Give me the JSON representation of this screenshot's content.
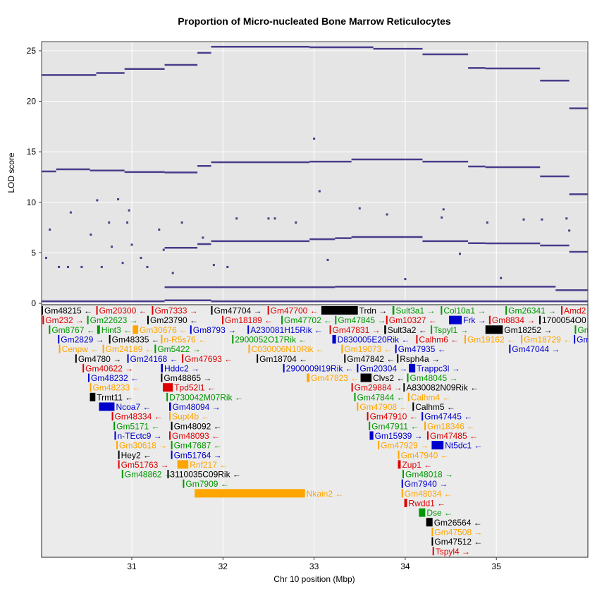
{
  "chart_data": {
    "type": "line",
    "title": "Proportion of Micro-nucleated Bone Marrow Reticulocytes",
    "xlabel": "Chr 10 position (Mbp)",
    "ylabel": "LOD score",
    "xlim": [
      30.01,
      36.0
    ],
    "ylim": [
      0,
      25.9
    ],
    "xticks": [
      31,
      32,
      33,
      34,
      35
    ],
    "yticks": [
      0,
      5,
      10,
      15,
      20,
      25
    ],
    "grid": true,
    "line_color": "#483D8B",
    "series": [
      {
        "steps": [
          [
            30.01,
            30.61,
            22.6
          ],
          [
            30.61,
            30.92,
            22.8
          ],
          [
            30.92,
            31.36,
            23.2
          ],
          [
            31.36,
            31.72,
            23.6
          ],
          [
            31.72,
            31.87,
            24.8
          ],
          [
            31.87,
            32.95,
            25.4
          ],
          [
            32.95,
            33.65,
            25.35
          ],
          [
            33.65,
            34.19,
            25.2
          ],
          [
            34.19,
            34.69,
            24.65
          ],
          [
            34.69,
            34.88,
            23.3
          ],
          [
            34.88,
            35.48,
            23.25
          ],
          [
            35.48,
            35.8,
            22.05
          ],
          [
            35.8,
            36.0,
            19.3
          ]
        ]
      },
      {
        "steps": [
          [
            30.01,
            30.17,
            13.06
          ],
          [
            30.17,
            30.54,
            13.27
          ],
          [
            30.54,
            30.92,
            13.15
          ],
          [
            30.92,
            31.36,
            13.0
          ],
          [
            31.36,
            31.72,
            12.95
          ],
          [
            31.72,
            31.87,
            13.6
          ],
          [
            31.87,
            32.95,
            13.97
          ],
          [
            32.95,
            33.41,
            14.03
          ],
          [
            33.41,
            34.19,
            14.25
          ],
          [
            34.19,
            34.69,
            14.03
          ],
          [
            34.69,
            34.88,
            13.55
          ],
          [
            34.88,
            35.48,
            13.48
          ],
          [
            35.48,
            35.8,
            12.57
          ],
          [
            35.8,
            36.0,
            10.8
          ]
        ]
      },
      {
        "steps": [
          [
            31.36,
            31.72,
            5.5
          ],
          [
            31.72,
            31.87,
            5.87
          ],
          [
            31.87,
            32.95,
            6.15
          ],
          [
            32.95,
            33.23,
            6.35
          ],
          [
            33.23,
            33.41,
            6.45
          ],
          [
            33.41,
            34.19,
            6.56
          ],
          [
            34.19,
            34.69,
            6.15
          ],
          [
            34.69,
            34.88,
            5.95
          ],
          [
            34.88,
            35.48,
            5.94
          ],
          [
            35.48,
            35.8,
            5.73
          ],
          [
            35.8,
            36.0,
            5.1
          ]
        ]
      },
      {
        "steps": [
          [
            30.01,
            31.36,
            0.2
          ],
          [
            31.36,
            31.87,
            0.3
          ],
          [
            31.87,
            36.0,
            0.2
          ]
        ]
      },
      {
        "steps": [
          [
            31.36,
            33.23,
            1.6
          ],
          [
            33.23,
            35.65,
            1.65
          ],
          [
            35.65,
            36.0,
            1.3
          ]
        ]
      }
    ],
    "points": [
      [
        30.06,
        4.5
      ],
      [
        30.1,
        7.3
      ],
      [
        30.2,
        3.6
      ],
      [
        30.3,
        3.6
      ],
      [
        30.33,
        9.0
      ],
      [
        30.45,
        3.6
      ],
      [
        30.55,
        6.8
      ],
      [
        30.62,
        10.2
      ],
      [
        30.67,
        3.6
      ],
      [
        30.75,
        8.0
      ],
      [
        30.78,
        5.6
      ],
      [
        30.85,
        10.3
      ],
      [
        30.9,
        4.0
      ],
      [
        30.95,
        8.0
      ],
      [
        30.97,
        9.2
      ],
      [
        31.0,
        5.8
      ],
      [
        31.1,
        4.5
      ],
      [
        31.17,
        3.6
      ],
      [
        31.3,
        7.3
      ],
      [
        31.35,
        5.3
      ],
      [
        31.45,
        3.0
      ],
      [
        31.55,
        8.0
      ],
      [
        31.78,
        6.5
      ],
      [
        31.9,
        3.8
      ],
      [
        32.05,
        3.6
      ],
      [
        32.15,
        8.4
      ],
      [
        32.5,
        8.4
      ],
      [
        32.57,
        8.4
      ],
      [
        32.8,
        8.0
      ],
      [
        33.0,
        16.3
      ],
      [
        33.06,
        11.1
      ],
      [
        33.15,
        4.3
      ],
      [
        33.5,
        9.4
      ],
      [
        33.8,
        8.8
      ],
      [
        34.0,
        2.4
      ],
      [
        34.4,
        8.5
      ],
      [
        34.42,
        9.3
      ],
      [
        34.6,
        4.9
      ],
      [
        34.9,
        8.0
      ],
      [
        35.05,
        2.5
      ],
      [
        35.3,
        8.3
      ],
      [
        35.5,
        8.3
      ],
      [
        35.77,
        8.4
      ],
      [
        35.8,
        7.2
      ]
    ],
    "gene_colors": {
      "k": "#000000",
      "r": "#dd0000",
      "g": "#009900",
      "b": "#0000cc",
      "o": "#ffa500"
    },
    "genes": [
      [
        "Gm48215",
        30.01,
        30.01,
        "-",
        "k",
        0
      ],
      [
        "Gm20300",
        30.61,
        30.61,
        "-",
        "r",
        0
      ],
      [
        "Gm7333",
        31.22,
        31.22,
        "+",
        "r",
        0
      ],
      [
        "Gm47704",
        31.87,
        31.87,
        "+",
        "k",
        0
      ],
      [
        "Gm47700",
        32.49,
        32.49,
        "-",
        "r",
        0
      ],
      [
        "Trdn",
        33.08,
        33.48,
        "+",
        "k",
        0
      ],
      [
        "Sult3a1",
        33.86,
        33.88,
        "+",
        "g",
        0
      ],
      [
        "Col10a1",
        34.39,
        34.39,
        "+",
        "g",
        0
      ],
      [
        "Gm26341",
        35.1,
        35.1,
        "+",
        "g",
        0
      ],
      [
        "Amd2",
        35.71,
        35.71,
        "-",
        "r",
        0
      ],
      [
        "Gm232",
        30.02,
        30.02,
        "+",
        "r",
        1
      ],
      [
        "Gm22623",
        30.51,
        30.51,
        "+",
        "g",
        1
      ],
      [
        "Gm23790",
        31.17,
        31.17,
        "-",
        "k",
        1
      ],
      [
        "Gm18189",
        31.99,
        31.99,
        "-",
        "r",
        1
      ],
      [
        "Gm47702",
        32.64,
        32.64,
        "-",
        "g",
        1
      ],
      [
        "Gm47845",
        33.23,
        33.23,
        "+",
        "g",
        1
      ],
      [
        "Gm10327",
        33.79,
        33.79,
        "-",
        "r",
        1
      ],
      [
        "Frk",
        34.48,
        34.62,
        "+",
        "b",
        1
      ],
      [
        "Gm8834",
        34.92,
        34.92,
        "+",
        "r",
        1
      ],
      [
        "1700054O0",
        35.47,
        35.47,
        "",
        "k",
        1
      ],
      [
        "Gm8767",
        30.09,
        30.09,
        "-",
        "g",
        2
      ],
      [
        "Hint3",
        30.62,
        30.65,
        "-",
        "g",
        2
      ],
      [
        "Gm30676",
        31.01,
        31.07,
        "-",
        "o",
        2
      ],
      [
        "Gm8793",
        31.64,
        31.64,
        "+",
        "b",
        2
      ],
      [
        "A230081H15Rik",
        32.27,
        32.27,
        "-",
        "b",
        2
      ],
      [
        "Gm47831",
        33.17,
        33.17,
        "+",
        "r",
        2
      ],
      [
        "Sult3a2",
        33.77,
        33.79,
        "-",
        "k",
        2
      ],
      [
        "Tspyl1",
        34.28,
        34.28,
        "+",
        "g",
        2
      ],
      [
        "Gm18252",
        34.88,
        35.07,
        "+",
        "k",
        2
      ],
      [
        "Gm",
        35.86,
        35.87,
        "",
        "g",
        2
      ],
      [
        "Gm2829",
        30.19,
        30.19,
        "+",
        "b",
        3
      ],
      [
        "Gm48335",
        30.75,
        30.75,
        "-",
        "k",
        3
      ],
      [
        "n-R5s76",
        31.32,
        31.32,
        "-",
        "o",
        3
      ],
      [
        "2900052O17Rik",
        32.1,
        32.1,
        "-",
        "g",
        3
      ],
      [
        "D830005E20Rik",
        33.2,
        33.24,
        "-",
        "b",
        3
      ],
      [
        "Calhm6",
        34.12,
        34.12,
        "-",
        "r",
        3
      ],
      [
        "Gm19162",
        34.65,
        34.65,
        "-",
        "o",
        3
      ],
      [
        "Gm18729",
        35.27,
        35.27,
        "-",
        "o",
        3
      ],
      [
        "Gm",
        35.85,
        35.86,
        "",
        "b",
        3
      ],
      [
        "Cenpw",
        30.2,
        30.2,
        "-",
        "o",
        4
      ],
      [
        "Gm24189",
        30.68,
        30.68,
        "-",
        "o",
        4
      ],
      [
        "Gm5422",
        31.25,
        31.25,
        "+",
        "g",
        4
      ],
      [
        "C030006N10Rik",
        32.28,
        32.28,
        "-",
        "o",
        4
      ],
      [
        "Gm19073",
        33.3,
        33.3,
        "-",
        "o",
        4
      ],
      [
        "Gm47935",
        33.89,
        33.89,
        "-",
        "b",
        4
      ],
      [
        "Gm47044",
        35.14,
        35.14,
        "+",
        "b",
        4
      ],
      [
        "Gm4780",
        30.38,
        30.38,
        "+",
        "k",
        5
      ],
      [
        "Gm24168",
        30.95,
        30.95,
        "-",
        "b",
        5
      ],
      [
        "Gm47693",
        31.55,
        31.55,
        "-",
        "r",
        5
      ],
      [
        "Gm18704",
        32.37,
        32.37,
        "-",
        "k",
        5
      ],
      [
        "Gm47842",
        33.33,
        33.33,
        "-",
        "k",
        5
      ],
      [
        "Rsph4a",
        33.91,
        33.92,
        "+",
        "k",
        5
      ],
      [
        "Gm40622",
        30.46,
        30.46,
        "+",
        "r",
        6
      ],
      [
        "Hddc2",
        31.32,
        31.34,
        "+",
        "b",
        6
      ],
      [
        "2900009I19Rik",
        32.66,
        32.66,
        "-",
        "b",
        6
      ],
      [
        "Gm20304",
        33.47,
        33.47,
        "+",
        "b",
        6
      ],
      [
        "Trappc3l",
        34.04,
        34.11,
        "+",
        "b",
        6
      ],
      [
        "Gm48232",
        30.52,
        30.52,
        "-",
        "b",
        7
      ],
      [
        "Gm48865",
        31.32,
        31.32,
        "+",
        "k",
        7
      ],
      [
        "Gm47823",
        32.92,
        32.95,
        "-",
        "o",
        7
      ],
      [
        "Clvs2",
        33.51,
        33.63,
        "-",
        "k",
        7
      ],
      [
        "Gm48045",
        34.02,
        34.02,
        "+",
        "g",
        7
      ],
      [
        "Gm48233",
        30.54,
        30.54,
        "-",
        "o",
        8
      ],
      [
        "Tpd52l1",
        31.34,
        31.45,
        "-",
        "r",
        8
      ],
      [
        "Gm29884",
        33.41,
        33.41,
        "+",
        "r",
        8
      ],
      [
        "A830082N09Rik",
        33.98,
        33.99,
        "-",
        "k",
        8
      ],
      [
        "Trmt11",
        30.54,
        30.6,
        "-",
        "k",
        9
      ],
      [
        "D730042M07Rik",
        31.38,
        31.38,
        "-",
        "g",
        9
      ],
      [
        "Gm47844",
        33.44,
        33.44,
        "-",
        "g",
        9
      ],
      [
        "Calhm4",
        34.03,
        34.03,
        "-",
        "o",
        9
      ],
      [
        "Ncoa7",
        30.64,
        30.81,
        "-",
        "b",
        10
      ],
      [
        "Gm48094",
        31.41,
        31.43,
        "+",
        "b",
        10
      ],
      [
        "Gm47908",
        33.47,
        33.47,
        "-",
        "o",
        10
      ],
      [
        "Calhm5",
        34.08,
        34.09,
        "-",
        "k",
        10
      ],
      [
        "Gm48334",
        30.78,
        30.78,
        "-",
        "r",
        11
      ],
      [
        "Supt4b",
        31.41,
        31.41,
        "-",
        "o",
        11
      ],
      [
        "Gm47910",
        33.58,
        33.58,
        "-",
        "r",
        11
      ],
      [
        "Gm47445",
        34.18,
        34.18,
        "-",
        "b",
        11
      ],
      [
        "Gm5171",
        30.8,
        30.8,
        "-",
        "g",
        12
      ],
      [
        "Gm48092",
        31.43,
        31.43,
        "-",
        "k",
        12
      ],
      [
        "Gm47911",
        33.6,
        33.6,
        "-",
        "g",
        12
      ],
      [
        "Gm18346",
        34.21,
        34.21,
        "-",
        "o",
        12
      ],
      [
        "n-TEctc9",
        30.81,
        30.81,
        "+",
        "b",
        13
      ],
      [
        "Gm48093",
        31.41,
        31.41,
        "-",
        "r",
        13
      ],
      [
        "Gm15939",
        33.61,
        33.65,
        "+",
        "b",
        13
      ],
      [
        "Gm47485",
        34.24,
        34.24,
        "-",
        "r",
        13
      ],
      [
        "Gm30618",
        30.83,
        30.83,
        "+",
        "o",
        14
      ],
      [
        "Gm47687",
        31.43,
        31.43,
        "-",
        "g",
        14
      ],
      [
        "Gm47929",
        33.7,
        33.7,
        "+",
        "o",
        14
      ],
      [
        "Nt5dc1",
        34.29,
        34.42,
        "-",
        "b",
        14
      ],
      [
        "Hey2",
        30.85,
        30.85,
        "-",
        "k",
        15
      ],
      [
        "Gm51764",
        31.43,
        31.43,
        "+",
        "b",
        15
      ],
      [
        "Gm47940",
        33.92,
        33.92,
        "-",
        "o",
        15
      ],
      [
        "Gm51763",
        30.85,
        30.85,
        "+",
        "r",
        16
      ],
      [
        "Rnf217",
        31.5,
        31.62,
        "-",
        "o",
        16
      ],
      [
        "Zup1",
        33.92,
        33.95,
        "-",
        "r",
        16
      ],
      [
        "Gm48862",
        30.89,
        30.89,
        "+",
        "g",
        17
      ],
      [
        "3110035C09Rik",
        31.39,
        31.39,
        "-",
        "k",
        17
      ],
      [
        "Gm48018",
        33.97,
        33.98,
        "+",
        "g",
        17
      ],
      [
        "Gm7909",
        31.56,
        31.56,
        "-",
        "g",
        18
      ],
      [
        "Gm7940",
        33.96,
        33.96,
        "+",
        "b",
        18
      ],
      [
        "Nkain2",
        31.69,
        32.9,
        "-",
        "o",
        19
      ],
      [
        "Gm48034",
        33.96,
        33.96,
        "-",
        "o",
        19
      ],
      [
        "Rwdd1",
        33.99,
        34.02,
        "-",
        "r",
        20
      ],
      [
        "Dse",
        34.15,
        34.22,
        "-",
        "g",
        21
      ],
      [
        "Gm26564",
        34.23,
        34.3,
        "-",
        "k",
        22
      ],
      [
        "Gm47508",
        34.29,
        34.29,
        "+",
        "o",
        23
      ],
      [
        "Gm47512",
        34.29,
        34.3,
        "-",
        "k",
        24
      ],
      [
        "Tspyl4",
        34.3,
        34.3,
        "+",
        "r",
        25
      ]
    ]
  }
}
